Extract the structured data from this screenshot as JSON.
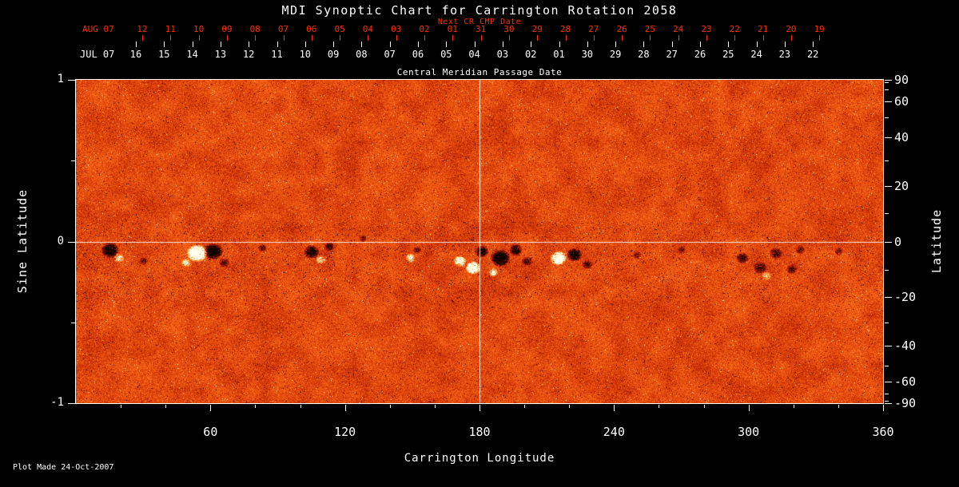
{
  "title": "MDI Synoptic Chart for Carrington Rotation 2058",
  "colors": {
    "background": "#000000",
    "foreground": "#ffffff",
    "accent_red": "#ff3000",
    "quiet_sun_orange": "#e85c1e"
  },
  "top_axis": {
    "next_cr_label": "Next CR CMP Date",
    "caption": "Central Meridian Passage Date",
    "aug_row": {
      "month_label": "AUG 07",
      "days": [
        "12",
        "11",
        "10",
        "09",
        "08",
        "07",
        "06",
        "05",
        "04",
        "03",
        "02",
        "01",
        "31",
        "30",
        "29",
        "28",
        "27",
        "26",
        "25",
        "24",
        "23",
        "22",
        "21",
        "20",
        "19"
      ]
    },
    "jul_row": {
      "month_label": "JUL 07",
      "days": [
        "16",
        "15",
        "14",
        "13",
        "12",
        "11",
        "10",
        "09",
        "08",
        "07",
        "06",
        "05",
        "04",
        "03",
        "02",
        "01",
        "30",
        "29",
        "28",
        "27",
        "26",
        "25",
        "24",
        "23",
        "22"
      ]
    }
  },
  "left_axis": {
    "label": "Sine Latitude",
    "major_ticks": [
      {
        "value": 1,
        "label": "1"
      },
      {
        "value": 0,
        "label": "0"
      },
      {
        "value": -1,
        "label": "-1"
      }
    ],
    "minor_values": [
      0.5,
      -0.5
    ]
  },
  "right_axis": {
    "label": "Latitude",
    "minor_step_deg": 10,
    "major_ticks": [
      {
        "value": 90,
        "label": "90"
      },
      {
        "value": 60,
        "label": "60"
      },
      {
        "value": 40,
        "label": "40"
      },
      {
        "value": 20,
        "label": "20"
      },
      {
        "value": 0,
        "label": "0"
      },
      {
        "value": -20,
        "label": "-20"
      },
      {
        "value": -40,
        "label": "-40"
      },
      {
        "value": -60,
        "label": "-60"
      },
      {
        "value": -90,
        "label": "-90"
      }
    ]
  },
  "bottom_axis": {
    "label": "Carrington Longitude",
    "minor_step_deg": 20,
    "major_ticks": [
      {
        "value": 60,
        "label": "60"
      },
      {
        "value": 120,
        "label": "120"
      },
      {
        "value": 180,
        "label": "180"
      },
      {
        "value": 240,
        "label": "240"
      },
      {
        "value": 300,
        "label": "300"
      },
      {
        "value": 360,
        "label": "360"
      }
    ]
  },
  "footer": {
    "plot_made": "Plot Made 24-Oct-2007"
  },
  "chart_data": {
    "type": "heatmap",
    "title": "MDI Synoptic Chart for Carrington Rotation 2058",
    "xlabel": "Carrington Longitude",
    "ylabel": "Sine Latitude",
    "y2label": "Latitude",
    "xlim": [
      0,
      360
    ],
    "ylim": [
      -1,
      1
    ],
    "x_ticks": [
      60,
      120,
      180,
      240,
      300,
      360
    ],
    "y_ticks_sine": [
      1,
      0,
      -1
    ],
    "y2_ticks_latitude_deg": [
      90,
      60,
      40,
      20,
      0,
      -20,
      -40,
      -60,
      -90
    ],
    "palette": "solar magnetogram heat map: black = strong negative polarity, dark red to orange = quiet sun noise, yellow-white = strong positive polarity",
    "reference_lines": {
      "longitude": 180,
      "sine_latitude": 0
    },
    "texture": {
      "seed": 20071024,
      "base": 0.6,
      "variance": 0.15,
      "speckle_dark_prob": 0.02,
      "speckle_bright_prob": 0.05,
      "equator_band": [
        -0.38,
        0.12
      ],
      "band_speckle_prob": 0.025
    },
    "active_regions": [
      {
        "longitude": 15,
        "sine_latitude": -0.05,
        "half_width_deg": 4,
        "half_height_sine": 0.05,
        "amplitude": -0.9
      },
      {
        "longitude": 19,
        "sine_latitude": -0.1,
        "half_width_deg": 2.5,
        "half_height_sine": 0.032,
        "amplitude": 0.55
      },
      {
        "longitude": 30,
        "sine_latitude": -0.12,
        "half_width_deg": 2,
        "half_height_sine": 0.026,
        "amplitude": -0.45
      },
      {
        "longitude": 54,
        "sine_latitude": -0.07,
        "half_width_deg": 5,
        "half_height_sine": 0.055,
        "amplitude": 1.25
      },
      {
        "longitude": 61,
        "sine_latitude": -0.06,
        "half_width_deg": 4.5,
        "half_height_sine": 0.05,
        "amplitude": -1.2
      },
      {
        "longitude": 49,
        "sine_latitude": -0.13,
        "half_width_deg": 2.5,
        "half_height_sine": 0.03,
        "amplitude": 0.5
      },
      {
        "longitude": 66,
        "sine_latitude": -0.13,
        "half_width_deg": 2.5,
        "half_height_sine": 0.03,
        "amplitude": -0.5
      },
      {
        "longitude": 83,
        "sine_latitude": -0.04,
        "half_width_deg": 2,
        "half_height_sine": 0.026,
        "amplitude": -0.5
      },
      {
        "longitude": 105,
        "sine_latitude": -0.06,
        "half_width_deg": 3.5,
        "half_height_sine": 0.042,
        "amplitude": -0.85
      },
      {
        "longitude": 109,
        "sine_latitude": -0.11,
        "half_width_deg": 2.5,
        "half_height_sine": 0.03,
        "amplitude": 0.55
      },
      {
        "longitude": 113,
        "sine_latitude": -0.03,
        "half_width_deg": 2.5,
        "half_height_sine": 0.03,
        "amplitude": -0.6
      },
      {
        "longitude": 128,
        "sine_latitude": 0.02,
        "half_width_deg": 1.8,
        "half_height_sine": 0.024,
        "amplitude": -0.4
      },
      {
        "longitude": 149,
        "sine_latitude": -0.1,
        "half_width_deg": 2.2,
        "half_height_sine": 0.03,
        "amplitude": 0.7
      },
      {
        "longitude": 152,
        "sine_latitude": -0.05,
        "half_width_deg": 2,
        "half_height_sine": 0.026,
        "amplitude": -0.45
      },
      {
        "longitude": 171,
        "sine_latitude": -0.12,
        "half_width_deg": 3,
        "half_height_sine": 0.036,
        "amplitude": 0.9
      },
      {
        "longitude": 177,
        "sine_latitude": -0.16,
        "half_width_deg": 3.5,
        "half_height_sine": 0.042,
        "amplitude": 1.1
      },
      {
        "longitude": 181,
        "sine_latitude": -0.06,
        "half_width_deg": 3,
        "half_height_sine": 0.04,
        "amplitude": -0.8
      },
      {
        "longitude": 189,
        "sine_latitude": -0.1,
        "half_width_deg": 4.5,
        "half_height_sine": 0.055,
        "amplitude": -1.1
      },
      {
        "longitude": 196,
        "sine_latitude": -0.05,
        "half_width_deg": 3,
        "half_height_sine": 0.04,
        "amplitude": -0.85
      },
      {
        "longitude": 186,
        "sine_latitude": -0.19,
        "half_width_deg": 2.2,
        "half_height_sine": 0.028,
        "amplitude": 0.6
      },
      {
        "longitude": 201,
        "sine_latitude": -0.12,
        "half_width_deg": 2.5,
        "half_height_sine": 0.03,
        "amplitude": -0.6
      },
      {
        "longitude": 215,
        "sine_latitude": -0.1,
        "half_width_deg": 3.8,
        "half_height_sine": 0.046,
        "amplitude": 1.15
      },
      {
        "longitude": 222,
        "sine_latitude": -0.08,
        "half_width_deg": 3.4,
        "half_height_sine": 0.042,
        "amplitude": -1.05
      },
      {
        "longitude": 228,
        "sine_latitude": -0.14,
        "half_width_deg": 2.5,
        "half_height_sine": 0.03,
        "amplitude": -0.55
      },
      {
        "longitude": 250,
        "sine_latitude": -0.08,
        "half_width_deg": 2,
        "half_height_sine": 0.026,
        "amplitude": -0.4
      },
      {
        "longitude": 270,
        "sine_latitude": -0.05,
        "half_width_deg": 1.8,
        "half_height_sine": 0.024,
        "amplitude": -0.4
      },
      {
        "longitude": 297,
        "sine_latitude": -0.1,
        "half_width_deg": 3,
        "half_height_sine": 0.036,
        "amplitude": -0.6
      },
      {
        "longitude": 305,
        "sine_latitude": -0.16,
        "half_width_deg": 3.2,
        "half_height_sine": 0.04,
        "amplitude": -0.5
      },
      {
        "longitude": 308,
        "sine_latitude": -0.21,
        "half_width_deg": 2.5,
        "half_height_sine": 0.03,
        "amplitude": 0.45
      },
      {
        "longitude": 312,
        "sine_latitude": -0.07,
        "half_width_deg": 3,
        "half_height_sine": 0.036,
        "amplitude": -0.6
      },
      {
        "longitude": 319,
        "sine_latitude": -0.17,
        "half_width_deg": 2.5,
        "half_height_sine": 0.03,
        "amplitude": -0.5
      },
      {
        "longitude": 323,
        "sine_latitude": -0.05,
        "half_width_deg": 2.2,
        "half_height_sine": 0.028,
        "amplitude": -0.5
      },
      {
        "longitude": 340,
        "sine_latitude": -0.06,
        "half_width_deg": 2,
        "half_height_sine": 0.026,
        "amplitude": -0.4
      }
    ]
  }
}
